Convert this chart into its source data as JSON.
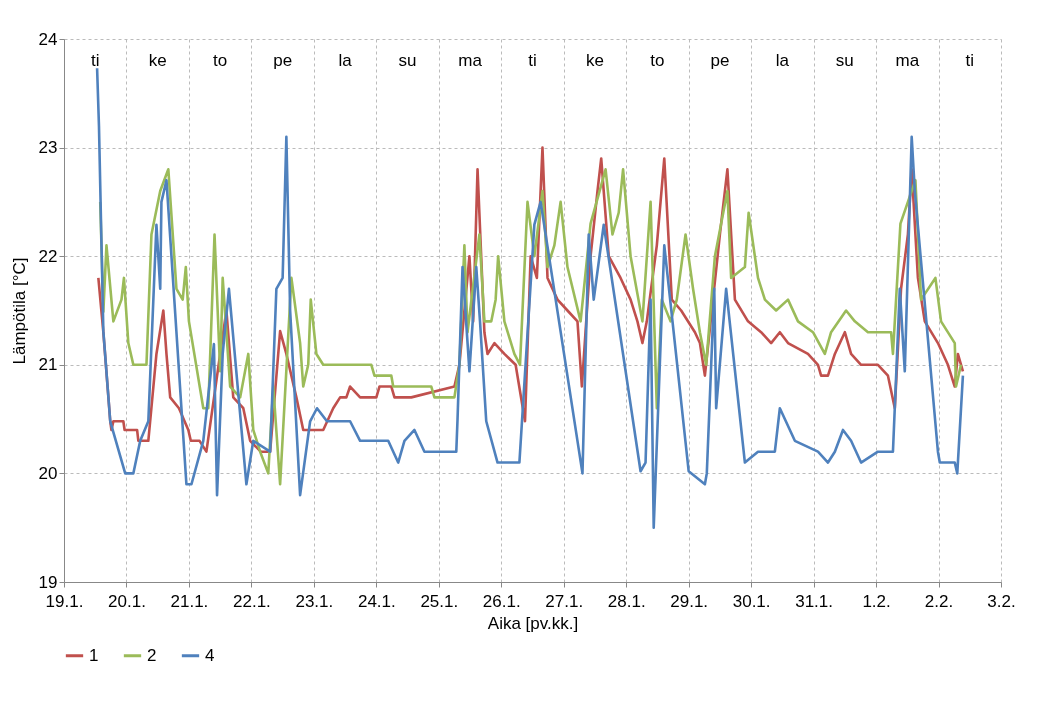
{
  "chart_data": {
    "type": "line",
    "xlabel": "Aika [pv.kk.]",
    "ylabel": "Lämpötila  [°C]",
    "xlim": [
      "--01-19",
      "--02-03"
    ],
    "ylim": [
      19,
      24
    ],
    "xticks": [
      {
        "value": "--01-19",
        "label": "19.1."
      },
      {
        "value": "--01-20",
        "label": "20.1."
      },
      {
        "value": "--01-21",
        "label": "21.1."
      },
      {
        "value": "--01-22",
        "label": "22.1."
      },
      {
        "value": "--01-23",
        "label": "23.1."
      },
      {
        "value": "--01-24",
        "label": "24.1."
      },
      {
        "value": "--01-25",
        "label": "25.1."
      },
      {
        "value": "--01-26",
        "label": "26.1."
      },
      {
        "value": "--01-27",
        "label": "27.1."
      },
      {
        "value": "--01-28",
        "label": "28.1."
      },
      {
        "value": "--01-29",
        "label": "29.1."
      },
      {
        "value": "--01-30",
        "label": "30.1."
      },
      {
        "value": "--01-31",
        "label": "31.1."
      },
      {
        "value": "--02-01",
        "label": "1.2."
      },
      {
        "value": "--02-02",
        "label": "2.2."
      },
      {
        "value": "--02-03",
        "label": "3.2."
      }
    ],
    "yticks": [
      19,
      20,
      21,
      22,
      23,
      24
    ],
    "grid": true,
    "legend": "bottom",
    "marker": "none",
    "line_style": "solid",
    "annotations": [
      "ti",
      "ke",
      "to",
      "pe",
      "la",
      "su",
      "ma",
      "ti",
      "ke",
      "to",
      "pe",
      "la",
      "su",
      "ma",
      "ti"
    ],
    "series": [
      {
        "name": "1",
        "color": "#c0504d",
        "x": [
          "--01-19T13:12",
          "--01-19T15:07",
          "--01-19T17:46",
          "--01-19T18:14",
          "--01-19T18:58",
          "--01-19T22:48",
          "--01-19T23:17",
          "--01-20T04:05",
          "--01-20T04:34",
          "--01-20T08:24",
          "--01-20T11:31",
          "--01-20T14:10",
          "--01-20T15:22",
          "--01-20T16:48",
          "--01-20T20:10",
          "--01-20T23:46",
          "--01-21T00:43",
          "--01-21T04:05",
          "--01-21T06:43",
          "--01-21T12:00",
          "--01-21T14:24",
          "--01-21T17:02",
          "--01-21T20:53",
          "--01-21T23:31",
          "--01-22T03:36",
          "--01-22T07:12",
          "--01-22T11:02",
          "--01-22T13:26",
          "--01-22T17:17",
          "--01-22T19:55",
          "--01-23T03:36",
          "--01-23T07:26",
          "--01-23T10:05",
          "--01-23T12:29",
          "--01-23T13:55",
          "--01-23T17:46",
          "--01-24T00:00",
          "--01-24T01:12",
          "--01-24T05:46",
          "--01-24T06:58",
          "--01-24T13:26",
          "--01-25T06:00",
          "--01-25T07:55",
          "--01-25T11:46",
          "--01-25T13:12",
          "--01-25T14:53",
          "--01-25T17:31",
          "--01-25T18:43",
          "--01-25T21:22",
          "--01-26T01:12",
          "--01-26T05:31",
          "--01-26T09:07",
          "--01-26T11:17",
          "--01-26T13:41",
          "--01-26T15:50",
          "--01-26T17:46",
          "--01-26T21:36",
          "--01-27T01:26",
          "--01-27T05:17",
          "--01-27T06:58",
          "--01-27T10:19",
          "--01-27T12:58",
          "--01-27T14:24",
          "--01-27T17:17",
          "--01-27T21:50",
          "--01-28T01:41",
          "--01-28T04:19",
          "--01-28T06:14",
          "--01-28T07:55",
          "--01-28T11:46",
          "--01-28T14:38",
          "--01-28T17:31",
          "--01-28T21:07",
          "--01-29T02:24",
          "--01-29T04:19",
          "--01-29T06:14",
          "--01-29T12:00",
          "--01-29T14:53",
          "--01-29T17:46",
          "--01-29T22:48",
          "--01-30T03:50",
          "--01-30T07:41",
          "--01-30T11:02",
          "--01-30T14:10",
          "--01-30T21:50",
          "--01-31T01:41",
          "--01-31T02:53",
          "--01-31T05:31",
          "--01-31T08:10",
          "--01-31T12:00",
          "--01-31T14:24",
          "--01-31T18:14",
          "--02-01T00:43",
          "--02-01T04:34",
          "--02-01T07:12",
          "--02-01T09:36",
          "--02-01T12:14",
          "--02-01T13:41",
          "--02-01T16:05",
          "--02-01T18:43",
          "--02-01T23:46",
          "--02-02T03:36",
          "--02-02T06:14",
          "--02-02T07:26",
          "--02-02T09:22"
        ],
        "values": [
          21.8,
          21.3,
          20.48,
          20.4,
          20.48,
          20.48,
          20.4,
          20.4,
          20.3,
          20.3,
          21.1,
          21.5,
          21.1,
          20.7,
          20.6,
          20.4,
          20.3,
          20.3,
          20.2,
          21.1,
          21.5,
          20.7,
          20.6,
          20.3,
          20.2,
          20.2,
          21.31,
          21.1,
          20.7,
          20.4,
          20.4,
          20.6,
          20.7,
          20.7,
          20.8,
          20.7,
          20.7,
          20.8,
          20.8,
          20.7,
          20.7,
          20.8,
          21.0,
          22.0,
          21.4,
          22.8,
          21.3,
          21.1,
          21.2,
          21.1,
          21.0,
          20.48,
          22.0,
          21.8,
          23.0,
          21.8,
          21.6,
          21.5,
          21.4,
          20.8,
          22.0,
          22.6,
          22.9,
          22.0,
          21.8,
          21.6,
          21.4,
          21.2,
          21.4,
          22.1,
          22.9,
          21.6,
          21.5,
          21.3,
          21.2,
          20.9,
          22.2,
          22.8,
          21.6,
          21.4,
          21.3,
          21.2,
          21.3,
          21.2,
          21.1,
          21.0,
          20.9,
          20.9,
          21.1,
          21.3,
          21.1,
          21.0,
          21.0,
          20.9,
          20.6,
          21.7,
          22.2,
          22.8,
          21.8,
          21.4,
          21.2,
          21.0,
          20.8,
          21.1,
          20.94
        ]
      },
      {
        "name": "2",
        "color": "#9bbb59",
        "x": [
          "--01-19T13:55",
          "--01-19T15:07",
          "--01-19T16:19",
          "--01-19T18:58",
          "--01-19T22:05",
          "--01-19T23:02",
          "--01-20T00:43",
          "--01-20T02:38",
          "--01-20T07:41",
          "--01-20T09:36",
          "--01-20T12:58",
          "--01-20T16:05",
          "--01-20T19:12",
          "--01-20T21:36",
          "--01-20T22:48",
          "--01-21T00:00",
          "--01-21T05:31",
          "--01-21T07:26",
          "--01-21T09:50",
          "--01-21T12:00",
          "--01-21T12:58",
          "--01-21T15:50",
          "--01-21T19:41",
          "--01-21T22:48",
          "--01-22T00:43",
          "--01-22T03:22",
          "--01-22T06:29",
          "--01-22T08:24",
          "--01-22T11:02",
          "--01-22T15:22",
          "--01-22T18:43",
          "--01-22T19:55",
          "--01-22T21:50",
          "--01-22T22:48",
          "--01-23T00:58",
          "--01-23T03:36",
          "--01-23T22:05",
          "--01-23T23:17",
          "--01-24T05:46",
          "--01-24T06:29",
          "--01-24T21:07",
          "--01-24T22:19",
          "--01-25T06:00",
          "--01-25T07:55",
          "--01-25T09:50",
          "--01-25T11:02",
          "--01-25T15:36",
          "--01-25T17:31",
          "--01-25T20:10",
          "--01-25T21:50",
          "--01-25T22:48",
          "--01-26T01:12",
          "--01-26T05:02",
          "--01-26T07:12",
          "--01-26T10:05",
          "--01-26T12:43",
          "--01-26T15:50",
          "--01-26T17:46",
          "--01-26T20:24",
          "--01-26T22:48",
          "--01-27T01:26",
          "--01-27T06:29",
          "--01-27T10:19",
          "--01-27T16:05",
          "--01-27T18:43",
          "--01-27T21:07",
          "--01-27T22:48",
          "--01-28T01:41",
          "--01-28T06:14",
          "--01-28T09:22",
          "--01-28T11:46",
          "--01-28T13:41",
          "--01-28T17:02",
          "--01-28T19:26",
          "--01-28T22:48",
          "--01-29T01:41",
          "--01-29T04:19",
          "--01-29T06:43",
          "--01-29T10:05",
          "--01-29T14:53",
          "--01-29T16:19",
          "--01-29T21:36",
          "--01-29T23:02",
          "--01-30T02:38",
          "--01-30T05:17",
          "--01-30T09:36",
          "--01-30T14:10",
          "--01-30T18:00",
          "--01-30T23:46",
          "--01-31T04:19",
          "--01-31T06:43",
          "--01-31T12:29",
          "--01-31T15:50",
          "--01-31T20:53",
          "--02-01T05:46",
          "--02-01T06:29",
          "--02-01T09:22",
          "--02-01T15:07",
          "--02-01T17:17",
          "--02-01T22:48",
          "--02-02T00:58",
          "--02-02T06:14",
          "--02-02T06:43",
          "--02-02T08:38"
        ],
        "values": [
          22.5,
          21.49,
          22.1,
          21.4,
          21.6,
          21.8,
          21.2,
          21.0,
          21.0,
          22.2,
          22.6,
          22.8,
          21.7,
          21.6,
          21.9,
          21.4,
          20.6,
          20.6,
          22.2,
          20.94,
          21.8,
          20.8,
          20.7,
          21.1,
          20.4,
          20.2,
          20.0,
          20.8,
          19.9,
          21.8,
          21.2,
          20.8,
          21.0,
          21.6,
          21.1,
          21.0,
          21.0,
          20.9,
          20.9,
          20.8,
          20.8,
          20.7,
          20.7,
          21.0,
          22.1,
          21.3,
          22.2,
          21.4,
          21.4,
          21.6,
          22.0,
          21.4,
          21.1,
          21.0,
          22.5,
          22.0,
          22.6,
          21.9,
          22.1,
          22.5,
          21.9,
          21.4,
          22.3,
          22.8,
          22.2,
          22.4,
          22.8,
          22.0,
          21.4,
          22.5,
          20.6,
          21.6,
          21.4,
          21.6,
          22.2,
          21.7,
          21.3,
          21.0,
          22.0,
          22.6,
          21.8,
          21.9,
          22.4,
          21.8,
          21.6,
          21.5,
          21.6,
          21.4,
          21.3,
          21.1,
          21.3,
          21.5,
          21.4,
          21.3,
          21.3,
          21.1,
          22.3,
          22.7,
          21.6,
          21.8,
          21.4,
          21.2,
          20.8,
          21.0
        ]
      },
      {
        "name": "4",
        "color": "#4f81bd",
        "x": [
          "--01-19T12:43",
          "--01-19T13:26",
          "--01-19T15:07",
          "--01-19T17:46",
          "--01-19T23:31",
          "--01-20T02:38",
          "--01-20T05:17",
          "--01-20T08:24",
          "--01-20T11:31",
          "--01-20T12:58",
          "--01-20T13:26",
          "--01-20T15:22",
          "--01-20T23:02",
          "--01-21T00:58",
          "--01-21T05:31",
          "--01-21T09:36",
          "--01-21T10:48",
          "--01-21T12:58",
          "--01-21T15:22",
          "--01-21T22:05",
          "--01-22T00:43",
          "--01-22T07:12",
          "--01-22T09:36",
          "--01-22T12:00",
          "--01-22T13:26",
          "--01-22T14:53",
          "--01-22T18:43",
          "--01-22T22:34",
          "--01-23T01:12",
          "--01-23T05:02",
          "--01-23T13:55",
          "--01-23T17:46",
          "--01-23T19:26",
          "--01-24T04:34",
          "--01-24T08:24",
          "--01-24T10:48",
          "--01-24T14:38",
          "--01-24T18:29",
          "--01-25T06:43",
          "--01-25T07:12",
          "--01-25T09:07",
          "--01-25T11:46",
          "--01-25T14:24",
          "--01-25T15:50",
          "--01-25T18:14",
          "--01-25T22:34",
          "--01-26T06:58",
          "--01-26T12:43",
          "--01-26T15:07",
          "--01-27T07:12",
          "--01-27T09:36",
          "--01-27T11:31",
          "--01-27T15:22",
          "--01-28T05:31",
          "--01-28T07:26",
          "--01-28T09:22",
          "--01-28T10:34",
          "--01-28T14:38",
          "--01-29T00:00",
          "--01-29T06:14",
          "--01-29T06:58",
          "--01-29T09:50",
          "--01-29T10:34",
          "--01-29T14:24",
          "--01-29T21:36",
          "--01-30T02:38",
          "--01-30T09:07",
          "--01-30T11:02",
          "--01-30T16:48",
          "--01-31T01:41",
          "--01-31T05:31",
          "--01-31T08:10",
          "--01-31T11:17",
          "--01-31T14:24",
          "--01-31T18:14",
          "--02-01T00:43",
          "--02-01T06:29",
          "--02-01T09:07",
          "--02-01T11:02",
          "--02-01T13:41",
          "--02-01T14:53",
          "--02-01T23:46",
          "--02-02T00:29",
          "--02-02T06:14",
          "--02-02T07:12",
          "--02-02T09:22"
        ],
        "values": [
          23.73,
          23.2,
          21.31,
          20.48,
          20.0,
          20.0,
          20.3,
          20.48,
          22.29,
          21.7,
          22.5,
          22.7,
          19.9,
          19.9,
          20.3,
          21.19,
          19.8,
          21.1,
          21.7,
          19.9,
          20.3,
          20.2,
          21.7,
          21.8,
          23.1,
          21.5,
          19.8,
          20.48,
          20.6,
          20.48,
          20.48,
          20.3,
          20.3,
          20.3,
          20.1,
          20.3,
          20.4,
          20.2,
          20.2,
          20.5,
          21.9,
          20.94,
          21.9,
          21.4,
          20.48,
          20.1,
          20.1,
          22.29,
          22.5,
          20.0,
          22.2,
          21.6,
          22.29,
          20.02,
          20.1,
          21.6,
          19.5,
          22.1,
          20.02,
          19.9,
          20.0,
          21.7,
          20.6,
          21.7,
          20.1,
          20.2,
          20.2,
          20.6,
          20.3,
          20.2,
          20.1,
          20.2,
          20.4,
          20.3,
          20.1,
          20.2,
          20.2,
          21.7,
          20.94,
          23.1,
          22.6,
          20.2,
          20.1,
          20.1,
          20.0,
          20.9
        ]
      }
    ]
  }
}
